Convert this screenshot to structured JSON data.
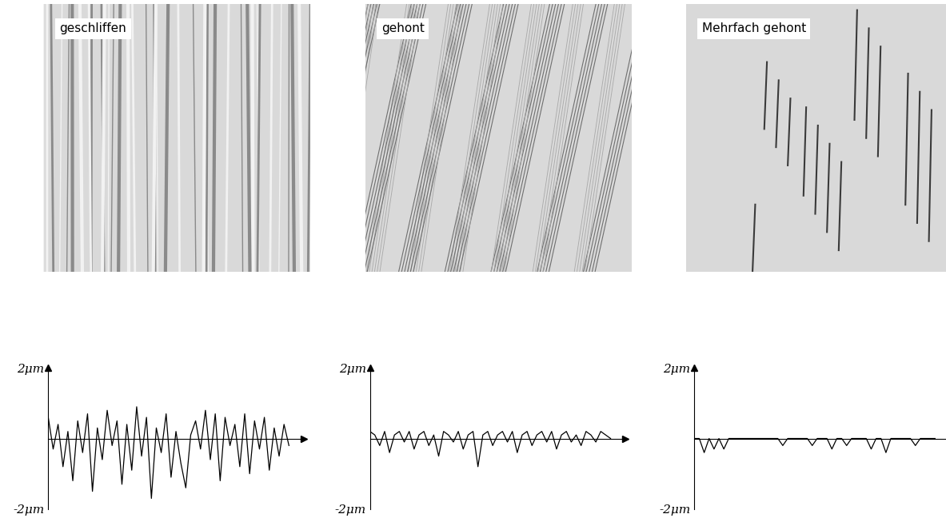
{
  "chart_data": [
    {
      "type": "line",
      "title": "geschliffen",
      "color": "#000000",
      "tick_labels": "y",
      "x": [
        0,
        1,
        2,
        3,
        4,
        5,
        6,
        7,
        8,
        9,
        10,
        11,
        12,
        13,
        14,
        15,
        16,
        17,
        18,
        19,
        20,
        21,
        22,
        23,
        24,
        25,
        26,
        27,
        28,
        29,
        30,
        31,
        32,
        33,
        34,
        35,
        36,
        37,
        38,
        39,
        40,
        41,
        42,
        43,
        44,
        45,
        46,
        47,
        48,
        49
      ],
      "values": [
        0.6,
        -0.3,
        0.4,
        -0.8,
        0.2,
        -1.2,
        0.5,
        -0.4,
        0.7,
        -1.5,
        0.3,
        -0.6,
        0.8,
        -0.2,
        0.5,
        -1.3,
        0.4,
        -0.9,
        0.9,
        -0.5,
        0.6,
        -1.7,
        0.3,
        -0.4,
        0.7,
        -1.1,
        0.2,
        -0.7,
        -1.4,
        0.1,
        0.5,
        -0.3,
        0.8,
        -0.6,
        0.7,
        -1.2,
        0.6,
        -0.2,
        0.4,
        -0.8,
        0.7,
        -1.0,
        0.5,
        -0.3,
        0.6,
        -0.9,
        0.3,
        -0.5,
        0.4,
        -0.2
      ],
      "xlim": [
        0,
        52
      ],
      "xticks": [],
      "ylim": [
        -2,
        2
      ],
      "yticks": [
        {
          "value": -2,
          "label": "-2μm"
        },
        {
          "value": 2,
          "label": "2μm"
        }
      ]
    },
    {
      "type": "line",
      "title": "gehont",
      "color": "#000000",
      "tick_labels": "y",
      "x": [
        0,
        1,
        2,
        3,
        4,
        5,
        6,
        7,
        8,
        9,
        10,
        11,
        12,
        13,
        14,
        15,
        16,
        17,
        18,
        19,
        20,
        21,
        22,
        23,
        24,
        25,
        26,
        27,
        28,
        29,
        30,
        31,
        32,
        33,
        34,
        35,
        36,
        37,
        38,
        39,
        40,
        41,
        42,
        43,
        44,
        45,
        46,
        47,
        48,
        49
      ],
      "values": [
        0.2,
        0.1,
        -0.2,
        0.2,
        -0.4,
        0.1,
        0.2,
        -0.1,
        0.2,
        -0.3,
        0.1,
        0.2,
        -0.2,
        0.1,
        -0.5,
        0.2,
        0.1,
        -0.1,
        0.2,
        -0.3,
        0.1,
        0.2,
        -0.8,
        0.1,
        0.2,
        -0.2,
        0.1,
        0.2,
        -0.1,
        0.2,
        -0.4,
        0.1,
        0.2,
        -0.2,
        0.1,
        0.2,
        -0.1,
        0.2,
        -0.3,
        0.1,
        0.2,
        -0.1,
        0.1,
        -0.2,
        0.2,
        0.1,
        -0.1,
        0.2,
        0.1,
        0.0
      ],
      "xlim": [
        0,
        52
      ],
      "xticks": [],
      "ylim": [
        -2,
        2
      ],
      "yticks": [
        {
          "value": -2,
          "label": "-2μm"
        },
        {
          "value": 2,
          "label": "2μm"
        }
      ]
    },
    {
      "type": "line",
      "title": "Mehrfach gehont",
      "color": "#000000",
      "tick_labels": "y",
      "x": [
        0,
        1,
        2,
        3,
        4,
        5,
        6,
        7,
        8,
        9,
        10,
        11,
        12,
        13,
        14,
        15,
        16,
        17,
        18,
        19,
        20,
        21,
        22,
        23,
        24,
        25,
        26,
        27,
        28,
        29,
        30,
        31,
        32,
        33,
        34,
        35,
        36,
        37,
        38,
        39,
        40,
        41,
        42,
        43,
        44,
        45,
        46,
        47,
        48,
        49
      ],
      "values": [
        0.0,
        0.0,
        -0.4,
        0.0,
        -0.3,
        0.0,
        -0.3,
        0.0,
        0.0,
        0.0,
        0.0,
        0.0,
        0.0,
        0.0,
        0.0,
        0.0,
        0.0,
        0.0,
        -0.2,
        0.0,
        0.0,
        0.0,
        0.0,
        0.0,
        -0.2,
        0.0,
        0.0,
        0.0,
        -0.3,
        0.0,
        0.0,
        -0.2,
        0.0,
        0.0,
        0.0,
        0.0,
        -0.3,
        0.0,
        0.0,
        -0.4,
        0.0,
        0.0,
        0.0,
        0.0,
        0.0,
        -0.2,
        0.0,
        0.0,
        0.0,
        0.0
      ],
      "xlim": [
        0,
        52
      ],
      "xticks": [],
      "ylim": [
        -2,
        2
      ],
      "yticks": [
        {
          "value": -2,
          "label": "-2μm"
        },
        {
          "value": 2,
          "label": "2μm"
        }
      ]
    }
  ]
}
